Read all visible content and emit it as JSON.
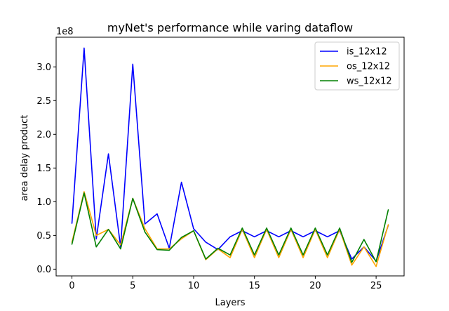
{
  "chart_data": {
    "type": "line",
    "title": "myNet's performance while varing dataflow",
    "xlabel": "Layers",
    "ylabel": "area delay product",
    "y_offset_label": "1e8",
    "y_scale": 100000000,
    "xlim": [
      -1.3,
      27.3
    ],
    "ylim": [
      -10000000,
      344000000
    ],
    "x_ticks": [
      0,
      5,
      10,
      15,
      20,
      25
    ],
    "y_ticks": [
      0,
      50000000,
      100000000,
      150000000,
      200000000,
      250000000,
      300000000
    ],
    "y_tick_labels": [
      "0.0",
      "0.5",
      "1.0",
      "1.5",
      "2.0",
      "2.5",
      "3.0"
    ],
    "grid": false,
    "legend_position": "top-right",
    "x": [
      0,
      1,
      2,
      3,
      4,
      5,
      6,
      7,
      8,
      9,
      10,
      11,
      12,
      13,
      14,
      15,
      16,
      17,
      18,
      19,
      20,
      21,
      22,
      23,
      24,
      25,
      26
    ],
    "series": [
      {
        "name": "is_12x12",
        "color": "#0000ff",
        "values": [
          68000000,
          328000000,
          45000000,
          171000000,
          33000000,
          304000000,
          67000000,
          82000000,
          31000000,
          129000000,
          60000000,
          40000000,
          29000000,
          48000000,
          57000000,
          48000000,
          57000000,
          48000000,
          57000000,
          48000000,
          57000000,
          48000000,
          57000000,
          15000000,
          33000000,
          12000000,
          65000000
        ]
      },
      {
        "name": "os_12x12",
        "color": "#ffa500",
        "values": [
          40000000,
          115000000,
          50000000,
          59000000,
          36000000,
          105000000,
          60000000,
          30000000,
          30000000,
          45000000,
          57000000,
          14000000,
          30000000,
          17000000,
          59000000,
          17000000,
          59000000,
          17000000,
          59000000,
          17000000,
          59000000,
          17000000,
          59000000,
          6000000,
          33000000,
          4000000,
          66000000
        ]
      },
      {
        "name": "ws_12x12",
        "color": "#008000",
        "values": [
          37000000,
          113000000,
          33000000,
          59000000,
          30000000,
          105000000,
          55000000,
          29000000,
          28000000,
          47000000,
          57000000,
          15000000,
          31000000,
          21000000,
          61000000,
          21000000,
          61000000,
          21000000,
          61000000,
          21000000,
          61000000,
          21000000,
          61000000,
          10000000,
          44000000,
          11000000,
          88000000
        ]
      }
    ]
  }
}
